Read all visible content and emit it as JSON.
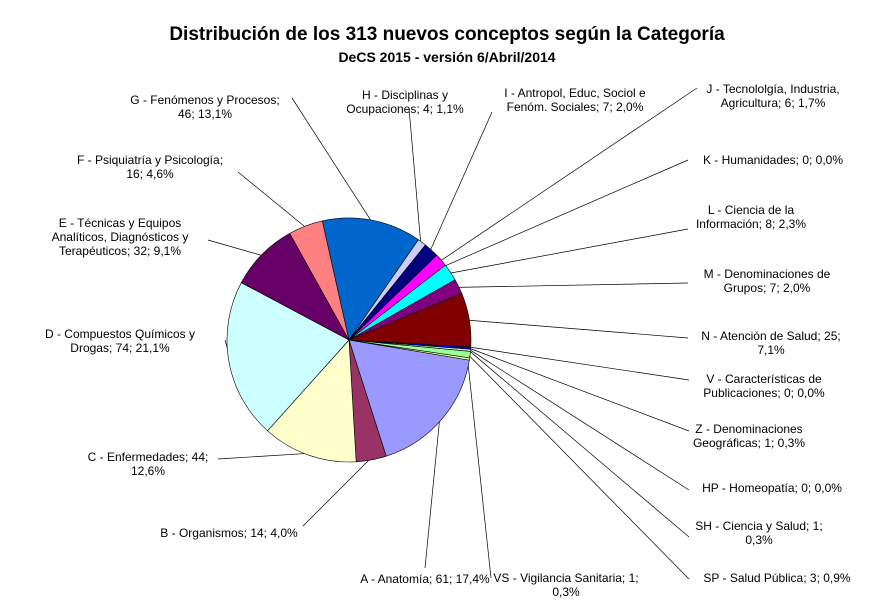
{
  "chart_data": {
    "type": "pie",
    "title": "Distribución  de los 313 nuevos conceptos según la Categoría",
    "subtitle": "DeCS  2015  - versión  6/Abril/2014",
    "slices": [
      {
        "code": "A",
        "value": 61,
        "percent": 17.4,
        "color": "#9999ff",
        "label_lines": [
          "A - Anatomía;  61;  17,4%"
        ]
      },
      {
        "code": "B",
        "value": 14,
        "percent": 4.0,
        "color": "#993366",
        "label_lines": [
          "B - Organismos;  14;  4,0%"
        ]
      },
      {
        "code": "C",
        "value": 44,
        "percent": 12.6,
        "color": "#ffffcc",
        "label_lines": [
          "C - Enfermedades;   44;",
          "12,6%"
        ]
      },
      {
        "code": "D",
        "value": 74,
        "percent": 21.1,
        "color": "#ccffff",
        "label_lines": [
          "D - Compuestos  Químicos  y",
          "Drogas;  74;  21,1%"
        ]
      },
      {
        "code": "E",
        "value": 32,
        "percent": 9.1,
        "color": "#660066",
        "label_lines": [
          "E - Técnicas  y Equipos",
          "Analíticos,  Diagnósticos  y",
          "Terapéuticos;  32;  9,1%"
        ]
      },
      {
        "code": "F",
        "value": 16,
        "percent": 4.6,
        "color": "#ff8080",
        "label_lines": [
          "F - Psiquiatría  y Psicología;",
          "16;  4,6%"
        ]
      },
      {
        "code": "G",
        "value": 46,
        "percent": 13.1,
        "color": "#0066cc",
        "label_lines": [
          "G - Fenómenos  y Procesos;",
          "46;  13,1%"
        ]
      },
      {
        "code": "H",
        "value": 4,
        "percent": 1.1,
        "color": "#ccccff",
        "label_lines": [
          "H - Disciplinas  y",
          "Ocupaciones;  4;  1,1%"
        ]
      },
      {
        "code": "I",
        "value": 7,
        "percent": 2.0,
        "color": "#000080",
        "label_lines": [
          "I - Antropol,  Educ,  Sociol e",
          "Fenóm.  Sociales;  7;  2,0%"
        ]
      },
      {
        "code": "J",
        "value": 6,
        "percent": 1.7,
        "color": "#ff00ff",
        "label_lines": [
          "J - Tecnololgía,   Industria,",
          "Agricultura;  6;  1,7%"
        ]
      },
      {
        "code": "K",
        "value": 0,
        "percent": 0.0,
        "color": "#ffff00",
        "label_lines": [
          "K - Humanidades;   0;  0,0%"
        ]
      },
      {
        "code": "L",
        "value": 8,
        "percent": 2.3,
        "color": "#00ffff",
        "label_lines": [
          "L - Ciencia de la",
          "Información;  8;  2,3%"
        ]
      },
      {
        "code": "M",
        "value": 7,
        "percent": 2.0,
        "color": "#800080",
        "label_lines": [
          "M - Denominaciones   de",
          "Grupos;  7;  2,0%"
        ]
      },
      {
        "code": "N",
        "value": 25,
        "percent": 7.1,
        "color": "#800000",
        "label_lines": [
          "N - Atención de Salud;  25;",
          "7,1%"
        ]
      },
      {
        "code": "V",
        "value": 0,
        "percent": 0.0,
        "color": "#008080",
        "label_lines": [
          "V - Características  de",
          "Publicaciones;  0;  0,0%"
        ]
      },
      {
        "code": "Z",
        "value": 1,
        "percent": 0.3,
        "color": "#0000ff",
        "label_lines": [
          "Z - Denominaciones",
          "Geográficas;  1;  0,3%"
        ]
      },
      {
        "code": "HP",
        "value": 0,
        "percent": 0.0,
        "color": "#00ccff",
        "label_lines": [
          "HP - Homeopatía;  0;  0,0%"
        ]
      },
      {
        "code": "SH",
        "value": 1,
        "percent": 0.3,
        "color": "#ccffcc",
        "label_lines": [
          "SH - Ciencia  y Salud;  1;",
          "0,3%"
        ]
      },
      {
        "code": "SP",
        "value": 3,
        "percent": 0.9,
        "color": "#99ff99",
        "label_lines": [
          "SP - Salud Pública;  3;  0,9%"
        ]
      },
      {
        "code": "VS",
        "value": 1,
        "percent": 0.3,
        "color": "#ffff99",
        "label_lines": [
          "VS - Vigilancia Sanitaria;  1;",
          "0,3%"
        ]
      }
    ],
    "legend": "none"
  }
}
